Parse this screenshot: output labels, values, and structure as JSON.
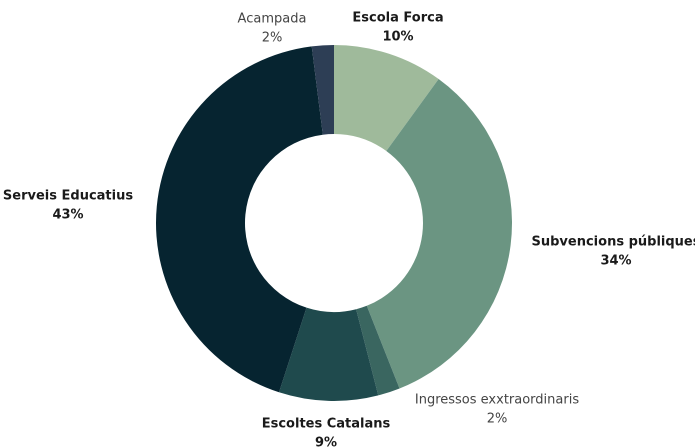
{
  "chart_data": {
    "type": "donut",
    "categories": [
      "Escola Forca",
      "Subvencions públiques",
      "Ingressos  exxtraordinaris",
      "Escoltes Catalans",
      "Serveis Educatius",
      "Acampada"
    ],
    "values": [
      10,
      34,
      2,
      9,
      43,
      2
    ],
    "value_labels": [
      "10%",
      "34%",
      "2%",
      "9%",
      "43%",
      "2%"
    ],
    "colors": [
      "#9fba9b",
      "#6b9582",
      "#3a6660",
      "#1f4a4d",
      "#062430",
      "#2d3e55"
    ]
  }
}
